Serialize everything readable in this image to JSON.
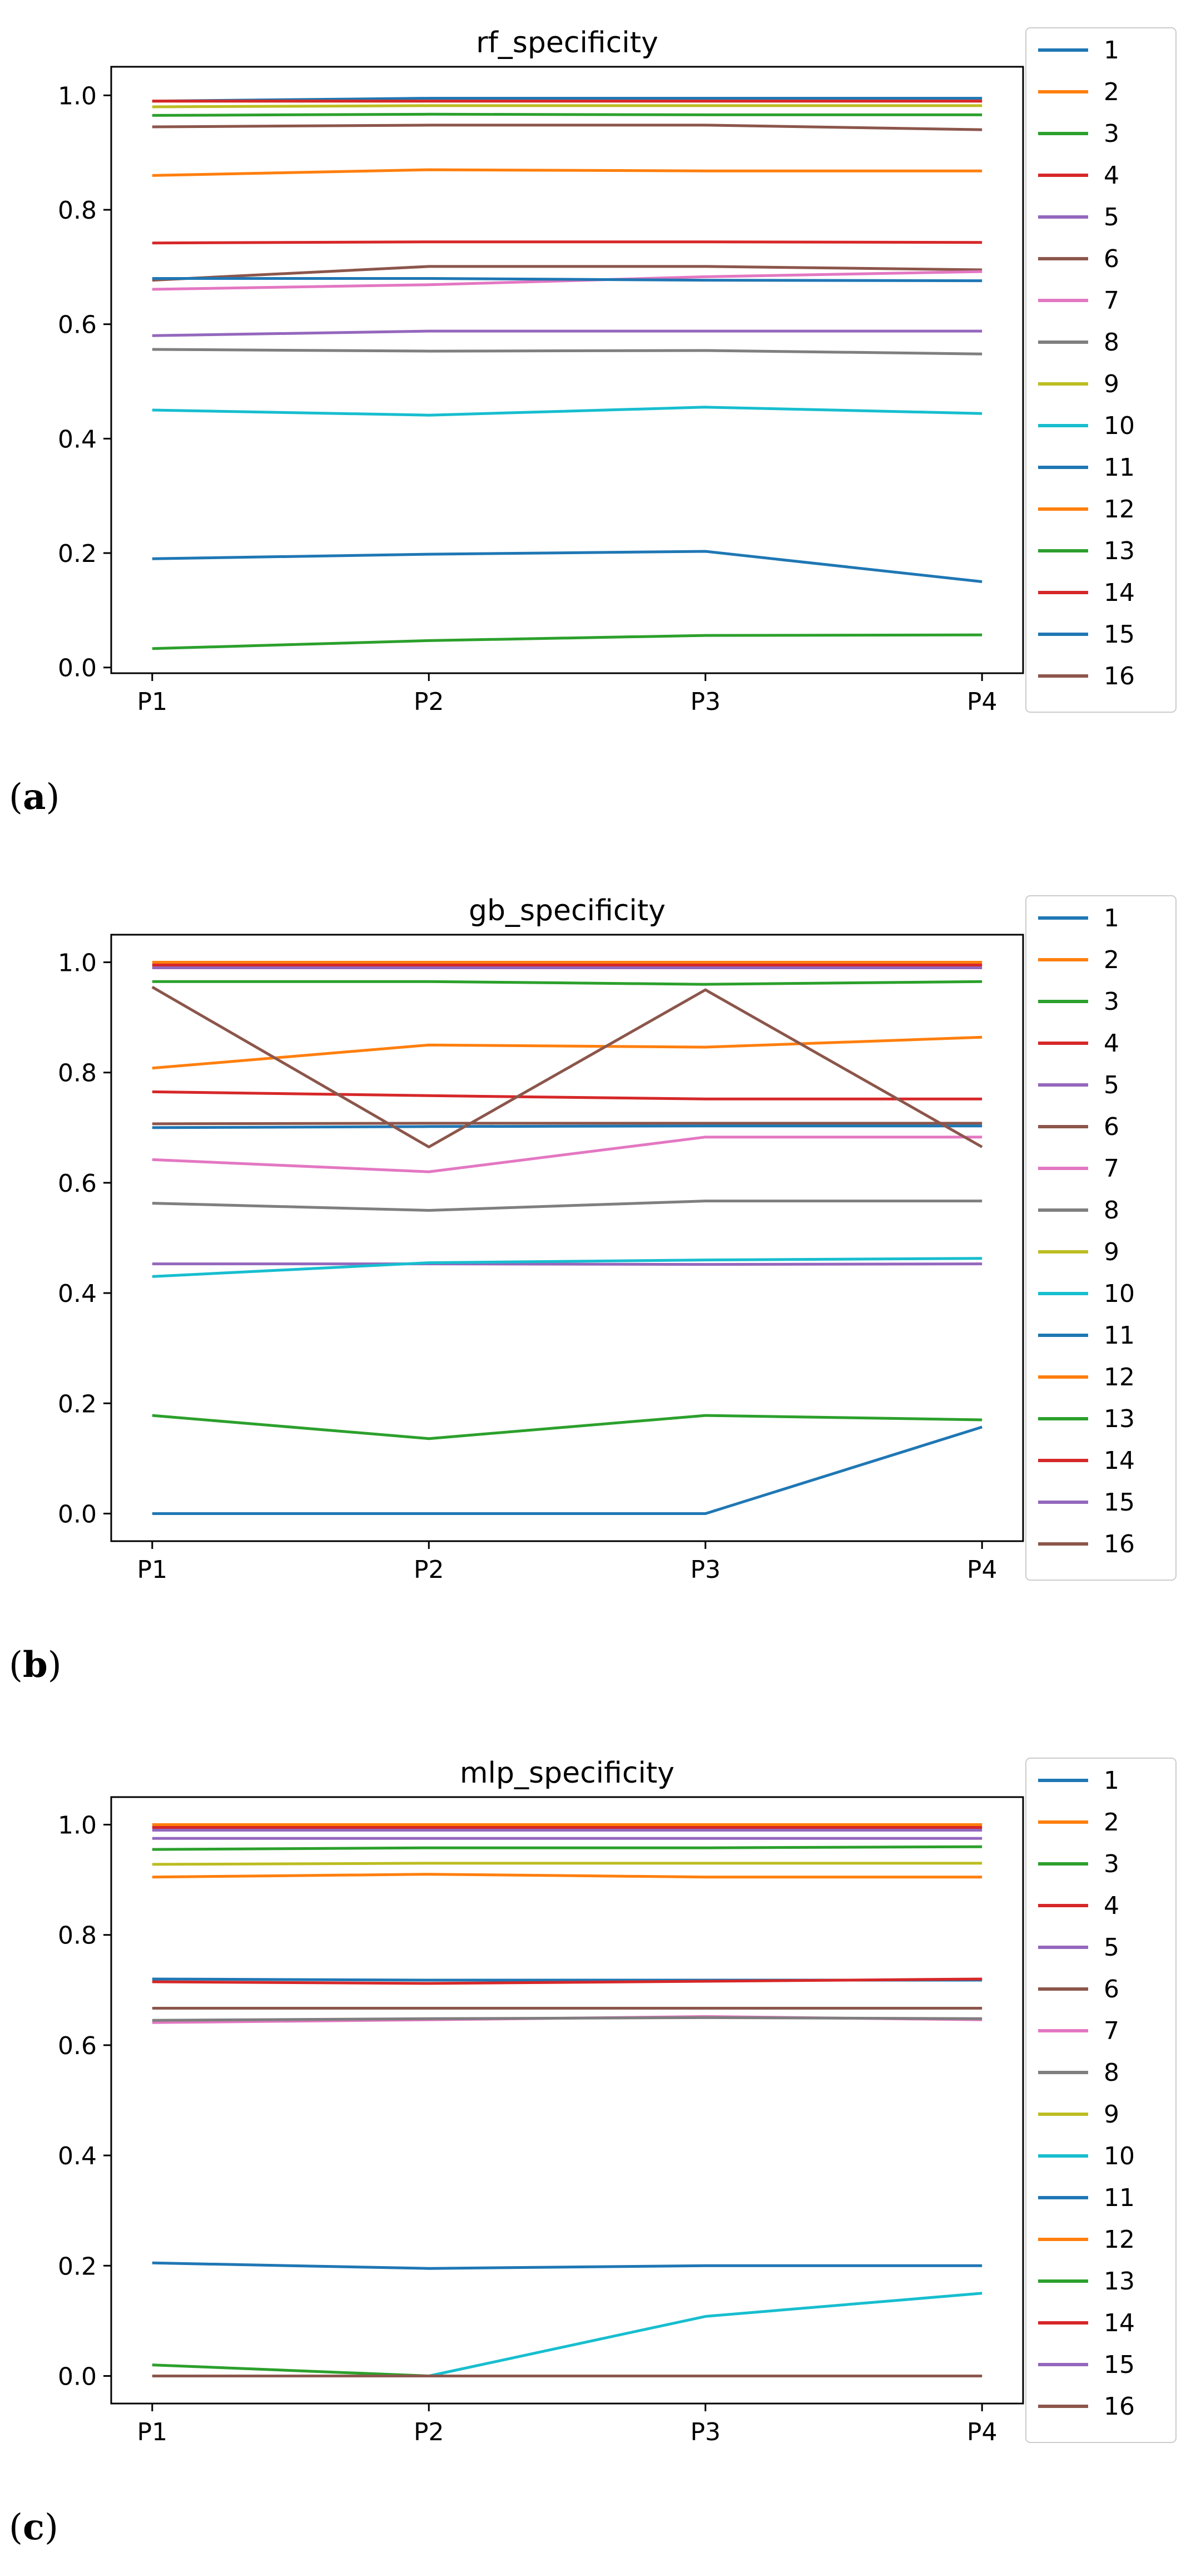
{
  "chart_data": [
    {
      "type": "line",
      "panel": "a",
      "title": "rf_specificity",
      "xlabel": "",
      "ylabel": "",
      "categories": [
        "P1",
        "P2",
        "P3",
        "P4"
      ],
      "ylim": [
        -0.01,
        1.05
      ],
      "yticks": [
        "0.0",
        "0.2",
        "0.4",
        "0.6",
        "0.8",
        "1.0"
      ],
      "series": [
        {
          "name": "1",
          "color": "#1f77b4",
          "values": [
            0.99,
            0.995,
            0.995,
            0.995
          ]
        },
        {
          "name": "2",
          "color": "#ff7f0e",
          "values": [
            0.99,
            0.99,
            0.99,
            0.99
          ]
        },
        {
          "name": "3",
          "color": "#2ca02c",
          "values": [
            0.965,
            0.967,
            0.966,
            0.966
          ]
        },
        {
          "name": "4",
          "color": "#d62728",
          "values": [
            0.742,
            0.744,
            0.744,
            0.743
          ]
        },
        {
          "name": "5",
          "color": "#9467bd",
          "values": [
            0.58,
            0.588,
            0.588,
            0.588
          ]
        },
        {
          "name": "6",
          "color": "#8c564b",
          "values": [
            0.677,
            0.701,
            0.701,
            0.695
          ]
        },
        {
          "name": "7",
          "color": "#e377c2",
          "values": [
            0.661,
            0.669,
            0.683,
            0.692
          ]
        },
        {
          "name": "8",
          "color": "#7f7f7f",
          "values": [
            0.556,
            0.553,
            0.554,
            0.548
          ]
        },
        {
          "name": "9",
          "color": "#bcbd22",
          "values": [
            0.98,
            0.982,
            0.982,
            0.982
          ]
        },
        {
          "name": "10",
          "color": "#17becf",
          "values": [
            0.45,
            0.441,
            0.455,
            0.444
          ]
        },
        {
          "name": "11",
          "color": "#1f77b4",
          "values": [
            0.68,
            0.68,
            0.677,
            0.676
          ]
        },
        {
          "name": "12",
          "color": "#ff7f0e",
          "values": [
            0.86,
            0.87,
            0.868,
            0.868
          ]
        },
        {
          "name": "13",
          "color": "#2ca02c",
          "values": [
            0.033,
            0.047,
            0.056,
            0.057
          ]
        },
        {
          "name": "14",
          "color": "#d62728",
          "values": [
            0.99,
            0.99,
            0.99,
            0.99
          ]
        },
        {
          "name": "15",
          "color": "#1f77b4",
          "values": [
            0.19,
            0.198,
            0.203,
            0.15
          ]
        },
        {
          "name": "16",
          "color": "#8c564b",
          "values": [
            0.945,
            0.948,
            0.948,
            0.94
          ]
        }
      ]
    },
    {
      "type": "line",
      "panel": "b",
      "title": "gb_specificity",
      "xlabel": "",
      "ylabel": "",
      "categories": [
        "P1",
        "P2",
        "P3",
        "P4"
      ],
      "ylim": [
        -0.05,
        1.05
      ],
      "yticks": [
        "0.0",
        "0.2",
        "0.4",
        "0.6",
        "0.8",
        "1.0"
      ],
      "series": [
        {
          "name": "1",
          "color": "#1f77b4",
          "values": [
            0.0,
            0.0,
            0.0,
            0.157
          ]
        },
        {
          "name": "2",
          "color": "#ff7f0e",
          "values": [
            1.0,
            1.0,
            1.0,
            1.0
          ]
        },
        {
          "name": "3",
          "color": "#2ca02c",
          "values": [
            0.965,
            0.965,
            0.96,
            0.965
          ]
        },
        {
          "name": "4",
          "color": "#d62728",
          "values": [
            0.765,
            0.758,
            0.752,
            0.752
          ]
        },
        {
          "name": "5",
          "color": "#9467bd",
          "values": [
            0.453,
            0.453,
            0.452,
            0.453
          ]
        },
        {
          "name": "6",
          "color": "#8c564b",
          "values": [
            0.707,
            0.708,
            0.708,
            0.708
          ]
        },
        {
          "name": "7",
          "color": "#e377c2",
          "values": [
            0.642,
            0.62,
            0.683,
            0.683
          ]
        },
        {
          "name": "8",
          "color": "#7f7f7f",
          "values": [
            0.563,
            0.55,
            0.567,
            0.567
          ]
        },
        {
          "name": "9",
          "color": "#bcbd22",
          "values": [
            0.99,
            0.99,
            0.99,
            0.99
          ]
        },
        {
          "name": "10",
          "color": "#17becf",
          "values": [
            0.43,
            0.455,
            0.46,
            0.463
          ]
        },
        {
          "name": "11",
          "color": "#1f77b4",
          "values": [
            0.7,
            0.702,
            0.703,
            0.703
          ]
        },
        {
          "name": "12",
          "color": "#ff7f0e",
          "values": [
            0.808,
            0.85,
            0.846,
            0.864
          ]
        },
        {
          "name": "13",
          "color": "#2ca02c",
          "values": [
            0.178,
            0.136,
            0.178,
            0.17
          ]
        },
        {
          "name": "14",
          "color": "#d62728",
          "values": [
            0.995,
            0.995,
            0.995,
            0.995
          ]
        },
        {
          "name": "15",
          "color": "#9467bd",
          "values": [
            0.99,
            0.99,
            0.99,
            0.99
          ]
        },
        {
          "name": "16",
          "color": "#8c564b",
          "values": [
            0.955,
            0.665,
            0.95,
            0.665
          ]
        }
      ]
    },
    {
      "type": "line",
      "panel": "c",
      "title": "mlp_specificity",
      "xlabel": "",
      "ylabel": "",
      "categories": [
        "P1",
        "P2",
        "P3",
        "P4"
      ],
      "ylim": [
        -0.05,
        1.05
      ],
      "yticks": [
        "0.0",
        "0.2",
        "0.4",
        "0.6",
        "0.8",
        "1.0"
      ],
      "series": [
        {
          "name": "1",
          "color": "#1f77b4",
          "values": [
            0.205,
            0.195,
            0.2,
            0.2
          ]
        },
        {
          "name": "2",
          "color": "#ff7f0e",
          "values": [
            1.0,
            1.0,
            1.0,
            1.0
          ]
        },
        {
          "name": "3",
          "color": "#2ca02c",
          "values": [
            0.955,
            0.958,
            0.958,
            0.96
          ]
        },
        {
          "name": "4",
          "color": "#d62728",
          "values": [
            0.995,
            0.995,
            0.995,
            0.995
          ]
        },
        {
          "name": "5",
          "color": "#9467bd",
          "values": [
            0.975,
            0.975,
            0.975,
            0.975
          ]
        },
        {
          "name": "6",
          "color": "#8c564b",
          "values": [
            0.667,
            0.667,
            0.667,
            0.667
          ]
        },
        {
          "name": "7",
          "color": "#e377c2",
          "values": [
            0.641,
            0.646,
            0.652,
            0.646
          ]
        },
        {
          "name": "8",
          "color": "#7f7f7f",
          "values": [
            0.645,
            0.648,
            0.65,
            0.648
          ]
        },
        {
          "name": "9",
          "color": "#bcbd22",
          "values": [
            0.928,
            0.93,
            0.93,
            0.93
          ]
        },
        {
          "name": "10",
          "color": "#17becf",
          "values": [
            0.0,
            0.0,
            0.108,
            0.15
          ]
        },
        {
          "name": "11",
          "color": "#1f77b4",
          "values": [
            0.72,
            0.718,
            0.718,
            0.718
          ]
        },
        {
          "name": "12",
          "color": "#ff7f0e",
          "values": [
            0.905,
            0.91,
            0.905,
            0.905
          ]
        },
        {
          "name": "13",
          "color": "#2ca02c",
          "values": [
            0.02,
            0.0,
            0.0,
            0.0
          ]
        },
        {
          "name": "14",
          "color": "#d62728",
          "values": [
            0.715,
            0.712,
            0.716,
            0.72
          ]
        },
        {
          "name": "15",
          "color": "#9467bd",
          "values": [
            0.99,
            0.99,
            0.99,
            0.99
          ]
        },
        {
          "name": "16",
          "color": "#8c564b",
          "values": [
            0.0,
            0.0,
            0.0,
            0.0
          ]
        }
      ]
    }
  ],
  "panel_labels": [
    "a",
    "b",
    "c"
  ]
}
